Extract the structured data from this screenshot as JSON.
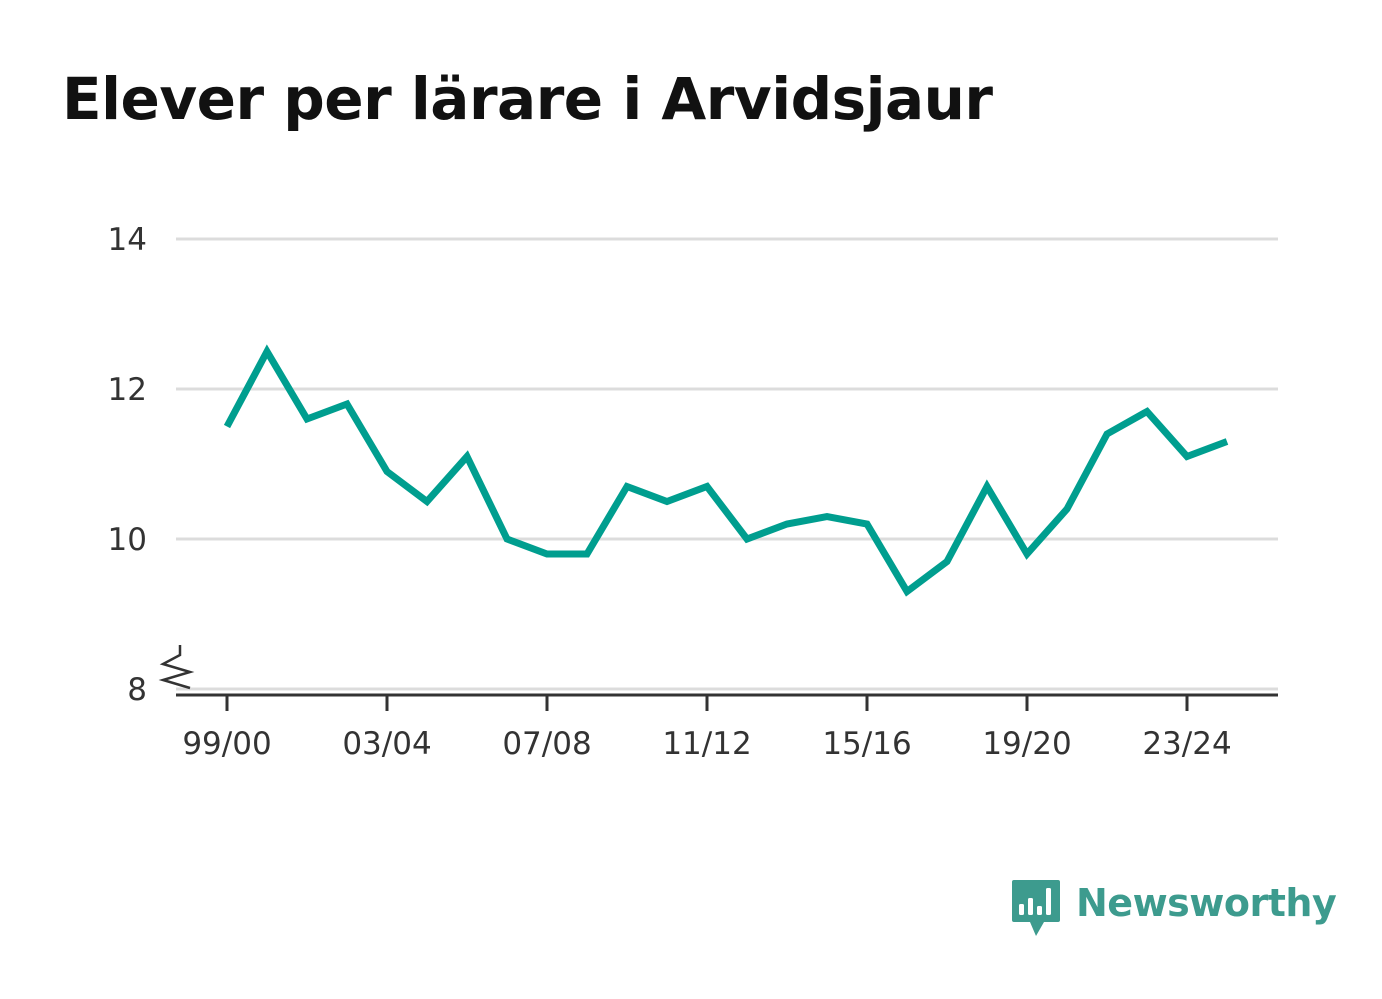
{
  "title": "Elever per lärare i Arvidsjaur",
  "colors": {
    "line": "#009e8f",
    "grid": "#dcdcdc",
    "axis": "#333333",
    "brand": "#3d9b8e"
  },
  "brand": {
    "name": "Newsworthy",
    "icon": "newsworthy-logo-icon"
  },
  "chart_data": {
    "type": "line",
    "title": "Elever per lärare i Arvidsjaur",
    "xlabel": "",
    "ylabel": "",
    "ylim": [
      8,
      14
    ],
    "y_ticks": [
      8,
      10,
      12,
      14
    ],
    "y_axis_break": true,
    "grid": true,
    "x_ticks": [
      "99/00",
      "03/04",
      "07/08",
      "11/12",
      "15/16",
      "19/20",
      "23/24"
    ],
    "categories": [
      "99/00",
      "00/01",
      "01/02",
      "02/03",
      "03/04",
      "04/05",
      "05/06",
      "06/07",
      "07/08",
      "08/09",
      "09/10",
      "10/11",
      "11/12",
      "12/13",
      "13/14",
      "14/15",
      "15/16",
      "16/17",
      "17/18",
      "18/19",
      "19/20",
      "20/21",
      "21/22",
      "22/23",
      "23/24",
      "24/25"
    ],
    "series": [
      {
        "values": [
          11.5,
          12.5,
          11.6,
          11.8,
          10.9,
          10.5,
          11.1,
          10.0,
          9.8,
          9.8,
          10.7,
          10.5,
          10.7,
          10.0,
          10.2,
          10.3,
          10.2,
          9.3,
          9.7,
          10.7,
          9.8,
          10.4,
          11.4,
          11.7,
          11.1,
          11.3
        ]
      }
    ]
  }
}
